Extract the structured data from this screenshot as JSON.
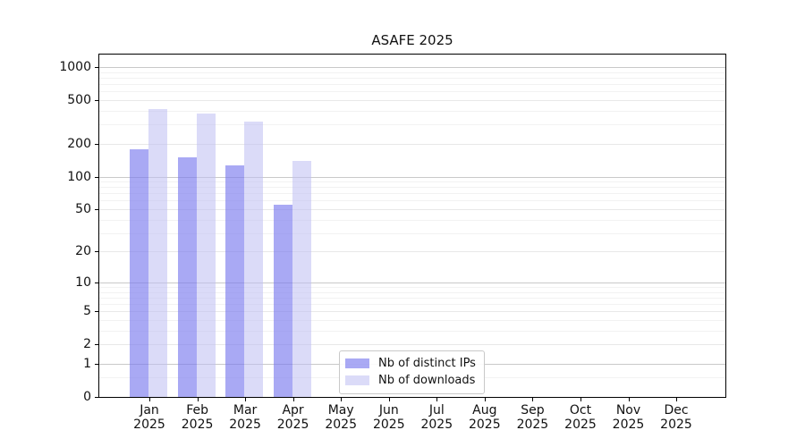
{
  "chart_data": {
    "type": "bar",
    "title": "ASAFE 2025",
    "categories": [
      "Jan",
      "Feb",
      "Mar",
      "Apr",
      "May",
      "Jun",
      "Jul",
      "Aug",
      "Sep",
      "Oct",
      "Nov",
      "Dec"
    ],
    "x_year_label": "2025",
    "series": [
      {
        "name": "Nb of distinct IPs",
        "color": "rgba(123,123,238,0.65)",
        "values": [
          177,
          149,
          126,
          55,
          0,
          0,
          0,
          0,
          0,
          0,
          0,
          0
        ]
      },
      {
        "name": "Nb of downloads",
        "color": "rgba(190,190,243,0.55)",
        "values": [
          412,
          380,
          321,
          139,
          0,
          0,
          0,
          0,
          0,
          0,
          0,
          0
        ]
      }
    ],
    "y_axis": {
      "scale": "log1p",
      "tick_labels": [
        "1000",
        "500",
        "200",
        "100",
        "50",
        "20",
        "10",
        "5",
        "2",
        "1",
        "0"
      ],
      "ticks": [
        1000,
        500,
        200,
        100,
        50,
        20,
        10,
        5,
        2,
        1,
        0
      ],
      "ylim": [
        0,
        1300
      ]
    },
    "grid": true,
    "legend": {
      "position": "bottom-center-inside",
      "entries": [
        "Nb of distinct IPs",
        "Nb of downloads"
      ]
    },
    "colors": {
      "grid_major": "#c9c9c9",
      "grid_labeled": "#e8e8e8",
      "grid_minor": "#f2f2f2",
      "axis": "#000000"
    }
  }
}
